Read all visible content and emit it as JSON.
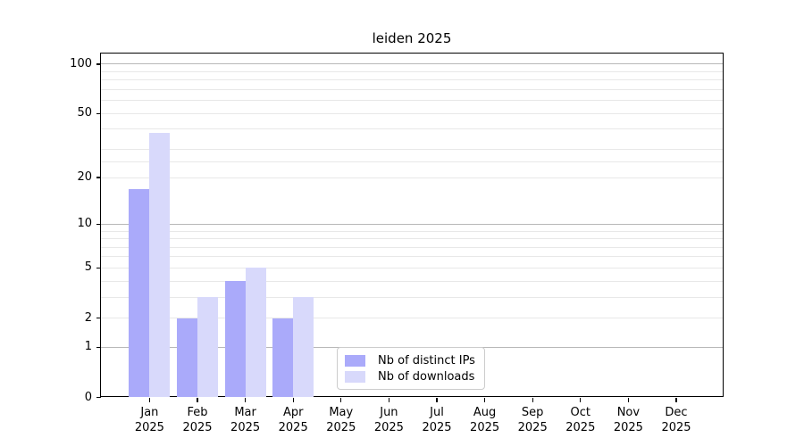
{
  "chart_data": {
    "type": "bar",
    "title": "leiden 2025",
    "categories": [
      "Jan",
      "Feb",
      "Mar",
      "Apr",
      "May",
      "Jun",
      "Jul",
      "Aug",
      "Sep",
      "Oct",
      "Nov",
      "Dec"
    ],
    "x_year": "2025",
    "series": [
      {
        "name": "Nb of distinct IPs",
        "color": "#aaaafa",
        "values": [
          17,
          2,
          4,
          2,
          0,
          0,
          0,
          0,
          0,
          0,
          0,
          0
        ]
      },
      {
        "name": "Nb of downloads",
        "color": "#d8d9fb",
        "values": [
          38,
          3,
          5,
          3,
          0,
          0,
          0,
          0,
          0,
          0,
          0,
          0
        ]
      }
    ],
    "yscale": "log1p",
    "ylim": [
      0,
      100
    ],
    "y_ticks": [
      0,
      1,
      2,
      5,
      10,
      20,
      50,
      100
    ],
    "y_major_grid": [
      1,
      10,
      100
    ],
    "y_minor_grid": [
      2,
      3,
      4,
      5,
      6,
      7,
      8,
      9,
      20,
      25,
      30,
      40,
      50,
      60,
      70,
      80,
      90
    ],
    "grid": true,
    "legend_position": "lower center-left inside plot"
  },
  "legend": {
    "items": [
      {
        "label": "Nb of distinct IPs",
        "color": "#aaaafa"
      },
      {
        "label": "Nb of downloads",
        "color": "#d8d9fb"
      }
    ]
  },
  "colors": {
    "background": "#ffffff",
    "spine": "#000000",
    "grid_major": "#b8b8b8",
    "grid_minor": "#e8e8e8",
    "text": "#000000"
  }
}
